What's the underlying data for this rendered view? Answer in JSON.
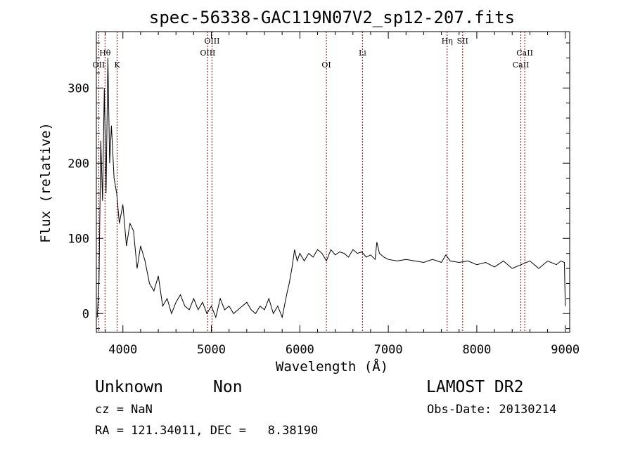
{
  "chart_data": {
    "type": "line",
    "title": "spec-56338-GAC119N07V2_sp12-207.fits",
    "xlabel": "Wavelength (Å)",
    "ylabel": "Flux (relative)",
    "xlim": [
      3700,
      9050
    ],
    "ylim": [
      -25,
      375
    ],
    "xticks": [
      "4000",
      "5000",
      "6000",
      "7000",
      "8000",
      "9000"
    ],
    "yticks": [
      "0",
      "100",
      "200",
      "300"
    ],
    "series": [
      {
        "color": "#000000",
        "x": [
          3710,
          3730,
          3750,
          3770,
          3790,
          3810,
          3830,
          3850,
          3870,
          3900,
          3930,
          3960,
          4000,
          4040,
          4080,
          4120,
          4160,
          4200,
          4250,
          4300,
          4350,
          4400,
          4450,
          4500,
          4550,
          4600,
          4650,
          4700,
          4750,
          4800,
          4850,
          4900,
          4950,
          5000,
          5050,
          5100,
          5150,
          5200,
          5250,
          5300,
          5350,
          5400,
          5450,
          5500,
          5550,
          5600,
          5650,
          5700,
          5750,
          5800,
          5850,
          5880,
          5910,
          5940,
          5970,
          6000,
          6050,
          6100,
          6150,
          6200,
          6250,
          6300,
          6350,
          6400,
          6450,
          6500,
          6550,
          6600,
          6650,
          6700,
          6750,
          6800,
          6850,
          6870,
          6900,
          6950,
          7000,
          7100,
          7200,
          7300,
          7400,
          7500,
          7600,
          7650,
          7700,
          7800,
          7900,
          8000,
          8100,
          8200,
          8300,
          8400,
          8500,
          8600,
          8700,
          8800,
          8900,
          8950,
          8990,
          9000
        ],
        "y": [
          -5,
          45,
          230,
          150,
          300,
          160,
          340,
          200,
          250,
          180,
          160,
          120,
          145,
          90,
          120,
          110,
          60,
          90,
          70,
          40,
          30,
          50,
          10,
          20,
          0,
          15,
          25,
          10,
          5,
          20,
          5,
          15,
          0,
          10,
          -5,
          20,
          5,
          10,
          0,
          5,
          10,
          15,
          5,
          0,
          10,
          5,
          20,
          0,
          10,
          -5,
          25,
          40,
          60,
          85,
          70,
          80,
          70,
          80,
          75,
          85,
          80,
          70,
          85,
          78,
          82,
          80,
          75,
          85,
          80,
          82,
          75,
          78,
          72,
          95,
          80,
          75,
          72,
          70,
          72,
          70,
          68,
          72,
          68,
          78,
          70,
          68,
          70,
          65,
          68,
          62,
          70,
          60,
          65,
          70,
          60,
          70,
          65,
          70,
          68,
          10
        ]
      }
    ],
    "lines": [
      {
        "name": "OII",
        "x": 3727,
        "color": "#8b0000",
        "label_row": 2
      },
      {
        "name": "Hθ",
        "x": 3798,
        "color": "#8b0000",
        "label_row": 1
      },
      {
        "name": "K",
        "x": 3934,
        "color": "#8b0000",
        "label_row": 2
      },
      {
        "name": "OIII",
        "x": 4959,
        "color": "#8b0000",
        "label_row": 1
      },
      {
        "name": "OIII",
        "x": 5007,
        "color": "#8b0000",
        "label_row": 0
      },
      {
        "name": "OI",
        "x": 6300,
        "color": "#8b0000",
        "label_row": 2
      },
      {
        "name": "Li",
        "x": 6708,
        "color": "#8b0000",
        "label_row": 1
      },
      {
        "name": "Hη",
        "x": 7665,
        "color": "#8b0000",
        "label_row": 0
      },
      {
        "name": "SII",
        "x": 7840,
        "color": "#8b0000",
        "label_row": 0
      },
      {
        "name": "CaII",
        "x": 8498,
        "color": "#8b0000",
        "label_row": 2
      },
      {
        "name": "CaII",
        "x": 8542,
        "color": "#8b0000",
        "label_row": 1
      }
    ],
    "grid": false,
    "legend": "none"
  },
  "info": {
    "object_type": "Unknown",
    "object_subtype": "Non",
    "redshift": "cz = NaN",
    "coords": "RA = 121.34011, DEC =   8.38190",
    "survey": "LAMOST DR2",
    "obs_date": "Obs-Date: 20130214"
  }
}
